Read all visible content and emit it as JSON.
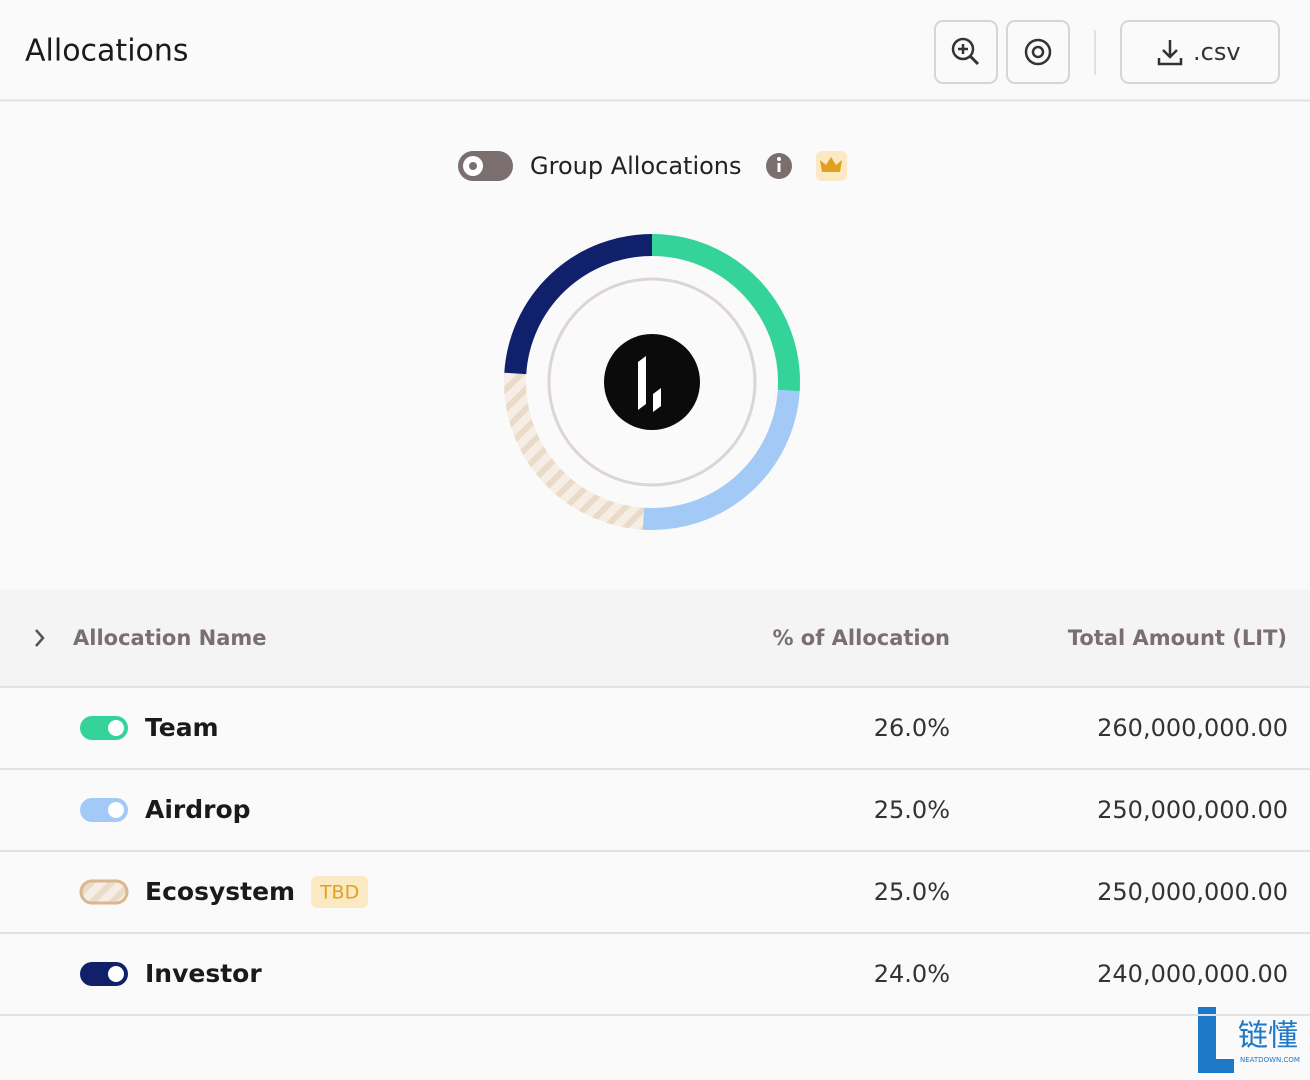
{
  "header": {
    "title": "Allocations",
    "csv_button": ".csv"
  },
  "group_toggle": {
    "label": "Group Allocations"
  },
  "chart_data": {
    "type": "pie",
    "donut": true,
    "categories": [
      "Team",
      "Airdrop",
      "Ecosystem",
      "Investor"
    ],
    "values": [
      26,
      25,
      25,
      24
    ],
    "value_labels": [
      "26.0%",
      "25.0%",
      "25.0%",
      "24.0%"
    ],
    "colors": [
      "#34d399",
      "#a3c9f7",
      "#eadbc8",
      "#10206b"
    ],
    "hatched": [
      false,
      false,
      true,
      false
    ]
  },
  "table": {
    "columns": [
      "Allocation Name",
      "% of Allocation",
      "Total Amount (LIT)"
    ],
    "amounts": [
      "260,000,000.00",
      "250,000,000.00",
      "250,000,000.00",
      "240,000,000.00"
    ],
    "tags": [
      null,
      null,
      "TBD",
      null
    ]
  },
  "watermark": {
    "title": "链懂",
    "subtitle": "NEATDOWN.COM"
  }
}
